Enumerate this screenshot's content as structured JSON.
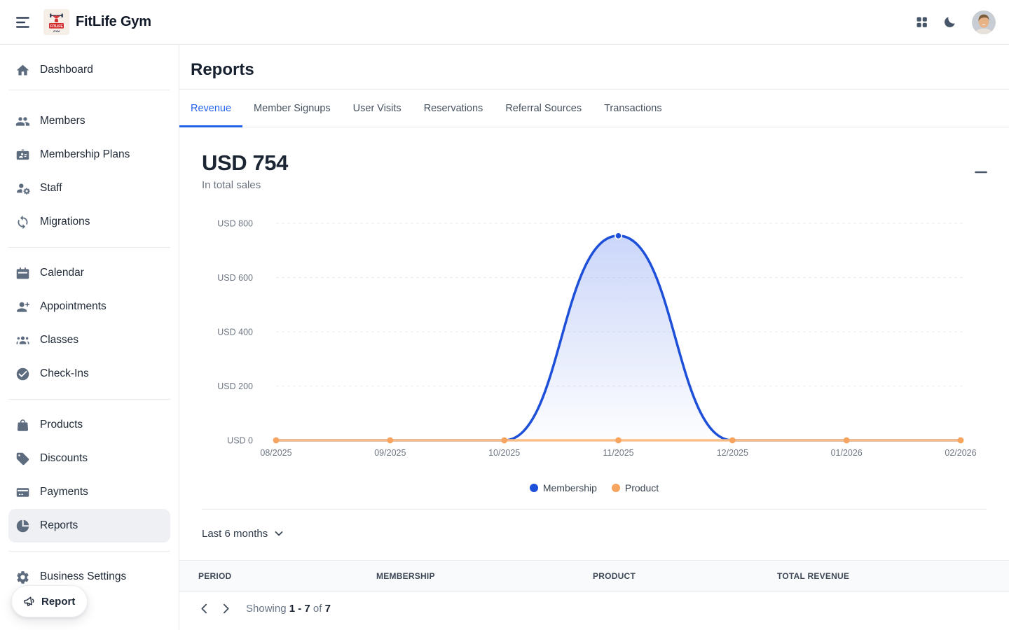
{
  "topbar": {
    "title": "FitLife Gym"
  },
  "sidebar": {
    "groups": [
      {
        "items": [
          {
            "label": "Dashboard",
            "icon": "home"
          }
        ]
      },
      {
        "items": [
          {
            "label": "Members",
            "icon": "people"
          },
          {
            "label": "Membership Plans",
            "icon": "id-card"
          },
          {
            "label": "Staff",
            "icon": "person-gear"
          },
          {
            "label": "Migrations",
            "icon": "sync"
          }
        ]
      },
      {
        "items": [
          {
            "label": "Calendar",
            "icon": "calendar"
          },
          {
            "label": "Appointments",
            "icon": "person-plus"
          },
          {
            "label": "Classes",
            "icon": "group"
          },
          {
            "label": "Check-Ins",
            "icon": "check-circle"
          }
        ]
      },
      {
        "items": [
          {
            "label": "Products",
            "icon": "bag"
          },
          {
            "label": "Discounts",
            "icon": "tag"
          },
          {
            "label": "Payments",
            "icon": "credit-card"
          },
          {
            "label": "Reports",
            "icon": "pie-chart",
            "active": true
          }
        ]
      },
      {
        "items": [
          {
            "label": "Business Settings",
            "icon": "gear"
          }
        ]
      }
    ],
    "report_button": "Report"
  },
  "page": {
    "title": "Reports"
  },
  "tabs": [
    {
      "label": "Revenue",
      "active": true
    },
    {
      "label": "Member Signups"
    },
    {
      "label": "User Visits"
    },
    {
      "label": "Reservations"
    },
    {
      "label": "Referral Sources"
    },
    {
      "label": "Transactions"
    }
  ],
  "chart_card": {
    "total": "USD 754",
    "subtitle": "In total sales"
  },
  "chart_data": {
    "type": "area",
    "categories": [
      "08/2025",
      "09/2025",
      "10/2025",
      "11/2025",
      "12/2025",
      "01/2026",
      "02/2026"
    ],
    "series": [
      {
        "name": "Membership",
        "color": "#1d4fd8",
        "values": [
          0,
          0,
          0,
          754,
          0,
          0,
          0
        ]
      },
      {
        "name": "Product",
        "color": "#f6a45f",
        "line_color": "#f9bd88",
        "values": [
          0,
          0,
          0,
          0,
          0,
          0,
          0
        ]
      }
    ],
    "ylim": [
      0,
      800
    ],
    "yticks": [
      {
        "value": 800,
        "label": "USD 800"
      },
      {
        "value": 600,
        "label": "USD 600"
      },
      {
        "value": 400,
        "label": "USD 400"
      },
      {
        "value": 200,
        "label": "USD 200"
      },
      {
        "value": 0,
        "label": "USD 0"
      }
    ],
    "legend_position": "bottom",
    "grid": true,
    "title": "USD 754 in total sales"
  },
  "range_selector": {
    "label": "Last 6 months"
  },
  "table": {
    "columns": [
      "PERIOD",
      "MEMBERSHIP",
      "PRODUCT",
      "TOTAL REVENUE"
    ],
    "rows": []
  },
  "pagination": {
    "showing_label": "Showing",
    "range": "1 - 7",
    "of_label": "of",
    "total": "7"
  }
}
